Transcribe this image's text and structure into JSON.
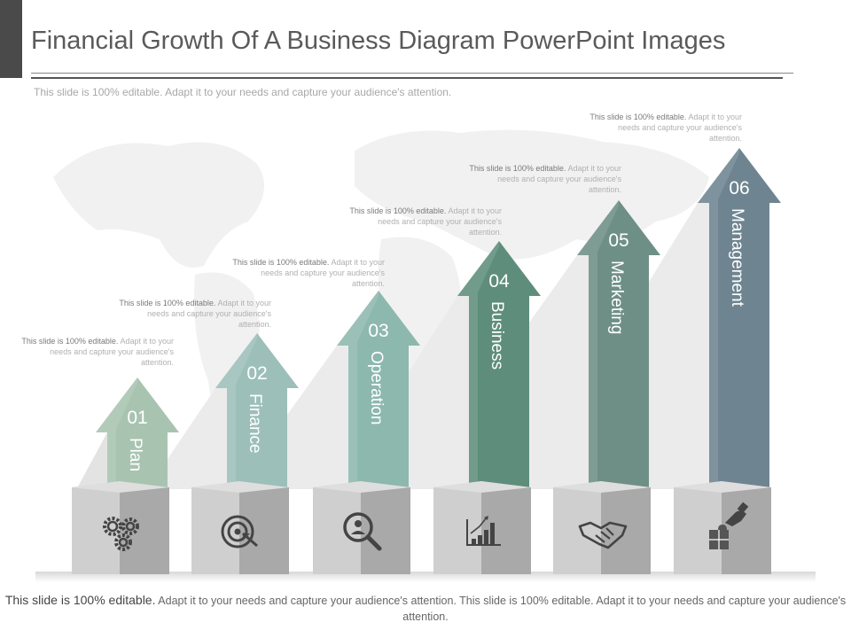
{
  "title": "Financial Growth Of A Business Diagram PowerPoint Images",
  "subtitle": "This slide is 100% editable. Adapt it to your needs and capture your audience's attention.",
  "steps": [
    {
      "number": "01",
      "label": "Plan",
      "note_bold": "This slide is 100% editable.",
      "note_rest": "Adapt it to your needs and capture your audience's attention.",
      "color": "#a8c4b0",
      "icon": "gears-icon"
    },
    {
      "number": "02",
      "label": "Finance",
      "note_bold": "This slide is 100% editable.",
      "note_rest": "Adapt it to your needs and capture your audience's attention.",
      "color": "#9cbfba",
      "icon": "target-icon"
    },
    {
      "number": "03",
      "label": "Operation",
      "note_bold": "This slide is 100% editable.",
      "note_rest": "Adapt it to your needs and capture your audience's attention.",
      "color": "#8db8ad",
      "icon": "search-person-icon"
    },
    {
      "number": "04",
      "label": "Business",
      "note_bold": "This slide is 100% editable.",
      "note_rest": "Adapt it to your needs and capture your audience's attention.",
      "color": "#5e8e7b",
      "icon": "bar-chart-icon"
    },
    {
      "number": "05",
      "label": "Marketing",
      "note_bold": "This slide is 100% editable.",
      "note_rest": "Adapt it to your needs and capture your audience's attention.",
      "color": "#6e8f86",
      "icon": "handshake-icon"
    },
    {
      "number": "06",
      "label": "Management",
      "note_bold": "This slide is 100% editable.",
      "note_rest": "Adapt it to your needs and capture your audience's attention.",
      "color": "#6e8591",
      "icon": "puzzle-hand-icon"
    }
  ],
  "footer": {
    "lead": "This slide is 100% editable.",
    "rest": "Adapt it to your needs and capture your audience's attention. This slide is 100% editable. Adapt it to your needs and capture your audience's attention."
  }
}
